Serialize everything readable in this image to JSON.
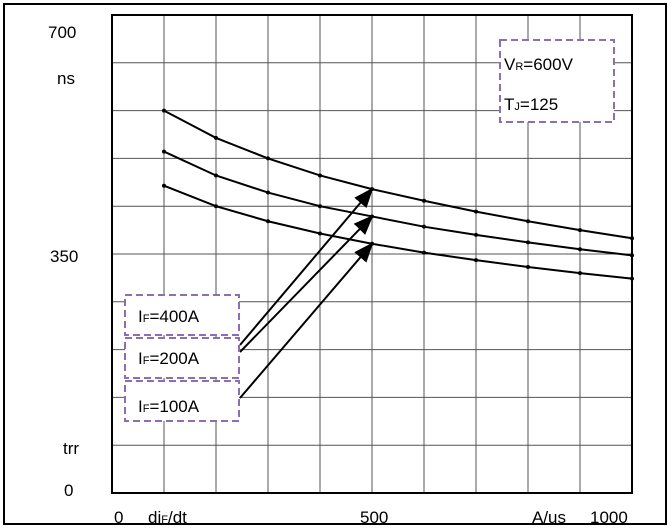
{
  "chart_data": {
    "type": "line",
    "title": "",
    "y_axis": {
      "unit_label": "ns",
      "quantity_label": "trr",
      "range": [
        0,
        700
      ],
      "ticks": [
        {
          "value": 0,
          "label": "0"
        },
        {
          "value": 350,
          "label": "350"
        },
        {
          "value": 700,
          "label": "700"
        }
      ]
    },
    "x_axis": {
      "quantity_label_main": "di",
      "quantity_label_sub": "F",
      "quantity_label_tail": "/dt",
      "unit_label": "A/us",
      "range": [
        0,
        1000
      ],
      "ticks": [
        {
          "value": 0,
          "label": "0"
        },
        {
          "value": 500,
          "label": "500"
        },
        {
          "value": 1000,
          "label": "1000"
        }
      ]
    },
    "conditions": [
      {
        "main": "V",
        "sub": "R",
        "value": "=600V"
      },
      {
        "main": "T",
        "sub": "J",
        "value": "=125"
      }
    ],
    "series": [
      {
        "name_main": "I",
        "name_sub": "F",
        "name_value": "=400A",
        "x": [
          100,
          200,
          300,
          400,
          500,
          600,
          700,
          800,
          900,
          1000
        ],
        "y": [
          560,
          520,
          490,
          465,
          445,
          428,
          412,
          398,
          385,
          373
        ]
      },
      {
        "name_main": "I",
        "name_sub": "F",
        "name_value": "=200A",
        "x": [
          100,
          200,
          300,
          400,
          500,
          600,
          700,
          800,
          900,
          1000
        ],
        "y": [
          500,
          465,
          440,
          420,
          405,
          390,
          378,
          367,
          357,
          348
        ]
      },
      {
        "name_main": "I",
        "name_sub": "F",
        "name_value": "=100A",
        "x": [
          100,
          200,
          300,
          400,
          500,
          600,
          700,
          800,
          900,
          1000
        ],
        "y": [
          450,
          420,
          398,
          380,
          365,
          352,
          341,
          331,
          322,
          314
        ]
      }
    ],
    "grid": true,
    "legend": "callout boxes, bottom-left"
  }
}
